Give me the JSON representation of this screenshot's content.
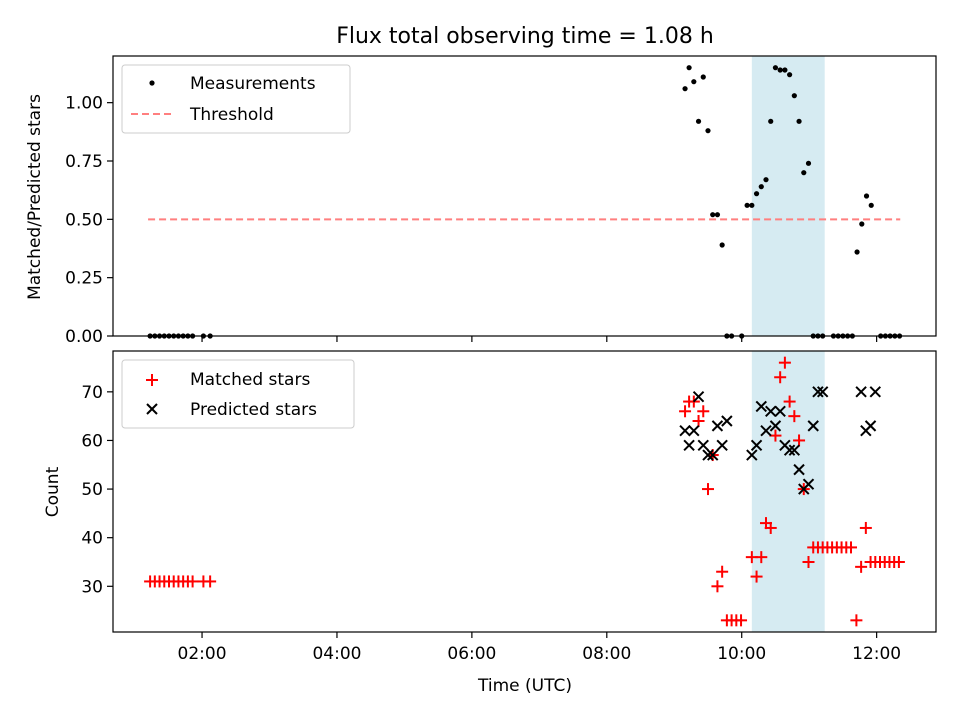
{
  "title": "Flux total observing time = 1.08 h",
  "colors": {
    "measurement": "#000000",
    "threshold": "#ff7f7f",
    "matched": "#ff0000",
    "predicted": "#000000",
    "span": "#add8e6"
  },
  "chart_data": [
    {
      "type": "scatter",
      "panel": "top",
      "xlabel": "",
      "ylabel": "Matched/Predicted stars",
      "xlim_hours": [
        0.68,
        12.88
      ],
      "ylim": [
        0,
        1.2
      ],
      "yticks": [
        0,
        0.25,
        0.5,
        0.75,
        1.0
      ],
      "ytick_labels": [
        "0.00",
        "0.25",
        "0.50",
        "0.75",
        "1.00"
      ],
      "shaded_span_hours": [
        10.15,
        11.23
      ],
      "legend": {
        "placement": "top-left",
        "entries": [
          "Measurements",
          "Threshold"
        ]
      },
      "threshold": {
        "name": "Threshold",
        "value": 0.5,
        "x_range_hours": [
          1.2,
          12.35
        ],
        "style": "dashed"
      },
      "series": [
        {
          "name": "Measurements",
          "marker": "dot",
          "x_hours": [
            1.23,
            1.3,
            1.37,
            1.44,
            1.51,
            1.58,
            1.65,
            1.72,
            1.79,
            1.86,
            2.02,
            2.12,
            9.16,
            9.22,
            9.29,
            9.36,
            9.43,
            9.5,
            9.57,
            9.64,
            9.71,
            9.78,
            9.85,
            10.0,
            10.08,
            10.15,
            10.22,
            10.29,
            10.36,
            10.43,
            10.5,
            10.57,
            10.64,
            10.71,
            10.78,
            10.85,
            10.92,
            10.99,
            11.06,
            11.13,
            11.2,
            11.36,
            11.43,
            11.5,
            11.57,
            11.64,
            11.71,
            11.78,
            11.85,
            11.92,
            12.06,
            12.13,
            12.2,
            12.27,
            12.34
          ],
          "y": [
            0,
            0,
            0,
            0,
            0,
            0,
            0,
            0,
            0,
            0,
            0,
            0,
            1.06,
            1.15,
            1.09,
            0.92,
            1.11,
            0.88,
            0.52,
            0.52,
            0.39,
            0,
            0,
            0,
            0.56,
            0.56,
            0.61,
            0.64,
            0.67,
            0.92,
            1.15,
            1.14,
            1.14,
            1.12,
            1.03,
            0.92,
            0.7,
            0.74,
            0,
            0,
            0,
            0,
            0,
            0,
            0,
            0,
            0.36,
            0.48,
            0.6,
            0.56,
            0,
            0,
            0,
            0,
            0
          ]
        }
      ]
    },
    {
      "type": "scatter",
      "panel": "bottom",
      "xlabel": "Time (UTC)",
      "ylabel": "Count",
      "xlim_hours": [
        0.68,
        12.88
      ],
      "ylim": [
        20.6,
        78.4
      ],
      "yticks": [
        30,
        40,
        50,
        60,
        70
      ],
      "ytick_labels": [
        "30",
        "40",
        "50",
        "60",
        "70"
      ],
      "xticks_hours": [
        2,
        4,
        6,
        8,
        10,
        12
      ],
      "xtick_labels": [
        "02:00",
        "04:00",
        "06:00",
        "08:00",
        "10:00",
        "12:00"
      ],
      "shaded_span_hours": [
        10.15,
        11.23
      ],
      "legend": {
        "placement": "top-left",
        "entries": [
          "Matched stars",
          "Predicted stars"
        ]
      },
      "series": [
        {
          "name": "Matched stars",
          "marker": "plus",
          "x_hours": [
            1.23,
            1.3,
            1.37,
            1.44,
            1.51,
            1.58,
            1.65,
            1.72,
            1.79,
            1.86,
            2.02,
            2.12,
            9.16,
            9.22,
            9.29,
            9.36,
            9.43,
            9.5,
            9.57,
            9.64,
            9.71,
            9.78,
            9.85,
            9.92,
            9.99,
            10.15,
            10.22,
            10.29,
            10.36,
            10.43,
            10.5,
            10.57,
            10.64,
            10.71,
            10.78,
            10.85,
            10.92,
            10.99,
            11.06,
            11.13,
            11.2,
            11.27,
            11.34,
            11.41,
            11.48,
            11.55,
            11.62,
            11.7,
            11.77,
            11.84,
            11.91,
            11.98,
            12.05,
            12.12,
            12.19,
            12.26,
            12.33
          ],
          "y": [
            31,
            31,
            31,
            31,
            31,
            31,
            31,
            31,
            31,
            31,
            31,
            31,
            66,
            68,
            68,
            64,
            66,
            50,
            57,
            30,
            33,
            23,
            23,
            23,
            23,
            36,
            32,
            36,
            43,
            42,
            61,
            73,
            76,
            68,
            65,
            60,
            50,
            35,
            38,
            38,
            38,
            38,
            38,
            38,
            38,
            38,
            38,
            23,
            34,
            42,
            35,
            35,
            35,
            35,
            35,
            35,
            35
          ]
        },
        {
          "name": "Predicted stars",
          "marker": "x",
          "x_hours": [
            9.16,
            9.22,
            9.29,
            9.36,
            9.43,
            9.5,
            9.57,
            9.64,
            9.71,
            9.78,
            10.15,
            10.22,
            10.29,
            10.36,
            10.43,
            10.5,
            10.57,
            10.64,
            10.71,
            10.78,
            10.85,
            10.92,
            10.99,
            11.06,
            11.13,
            11.2,
            11.77,
            11.84,
            11.91,
            11.98
          ],
          "y": [
            62,
            59,
            62,
            69,
            59,
            57,
            57,
            63,
            59,
            64,
            57,
            59,
            67,
            62,
            66,
            63,
            66,
            59,
            58,
            58,
            54,
            50,
            51,
            63,
            70,
            70,
            70,
            62,
            63,
            70
          ]
        }
      ]
    }
  ]
}
